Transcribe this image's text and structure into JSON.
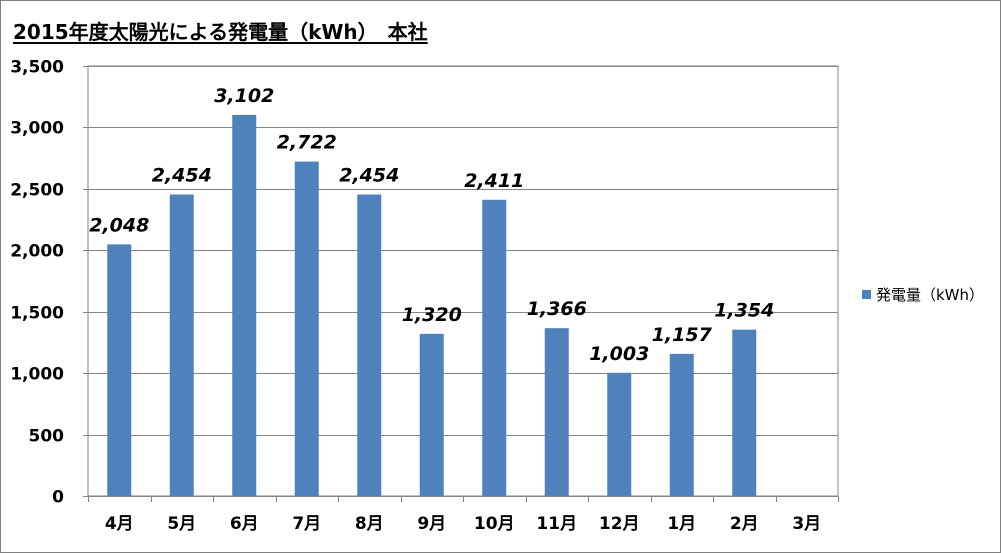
{
  "chart_data": {
    "type": "bar",
    "title": "2015年度太陽光による発電量（kWh）　本社",
    "categories": [
      "4月",
      "5月",
      "6月",
      "7月",
      "8月",
      "9月",
      "10月",
      "11月",
      "12月",
      "1月",
      "2月",
      "3月"
    ],
    "series": [
      {
        "name": "発電量（kWh）",
        "values": [
          2048,
          2454,
          3102,
          2722,
          2454,
          1320,
          2411,
          1366,
          1003,
          1157,
          1354,
          null
        ],
        "labels": [
          "2,048",
          "2,454",
          "3,102",
          "2,722",
          "2,454",
          "1,320",
          "2,411",
          "1,366",
          "1,003",
          "1,157",
          "1,354",
          ""
        ],
        "color": "#4f81bd"
      }
    ],
    "yticks": [
      "0",
      "500",
      "1,000",
      "1,500",
      "2,000",
      "2,500",
      "3,000",
      "3,500"
    ],
    "ylim": [
      0,
      3500
    ],
    "grid": true,
    "legend_position": "right"
  }
}
